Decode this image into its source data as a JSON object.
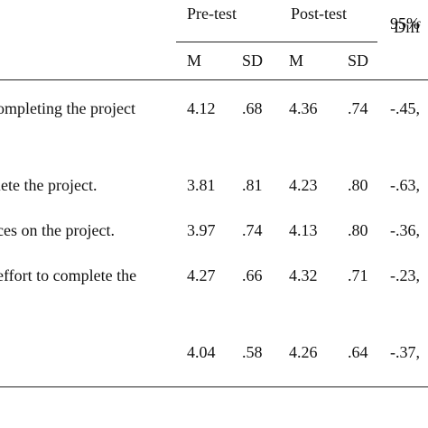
{
  "table": {
    "header": {
      "groups": [
        "Pre-test",
        "Post-test",
        "95%"
      ],
      "sub": [
        "M",
        "SD",
        "M",
        "SD",
        "Diff"
      ]
    },
    "rows": [
      {
        "label": "ompleting the project",
        "cells": [
          "4.12",
          ".68",
          "4.36",
          ".74",
          "-.45,"
        ]
      },
      {
        "label": "lete the project.",
        "cells": [
          "3.81",
          ".81",
          "4.23",
          ".80",
          "-.63,"
        ]
      },
      {
        "label": "ces on the project.",
        "cells": [
          "3.97",
          ".74",
          "4.13",
          ".80",
          "-.36,"
        ]
      },
      {
        "label": "effort to complete the",
        "cells": [
          "4.27",
          ".66",
          "4.32",
          ".71",
          "-.23,"
        ]
      },
      {
        "cells": [
          "4.04",
          ".58",
          "4.26",
          ".64",
          "-.37,"
        ]
      }
    ]
  }
}
